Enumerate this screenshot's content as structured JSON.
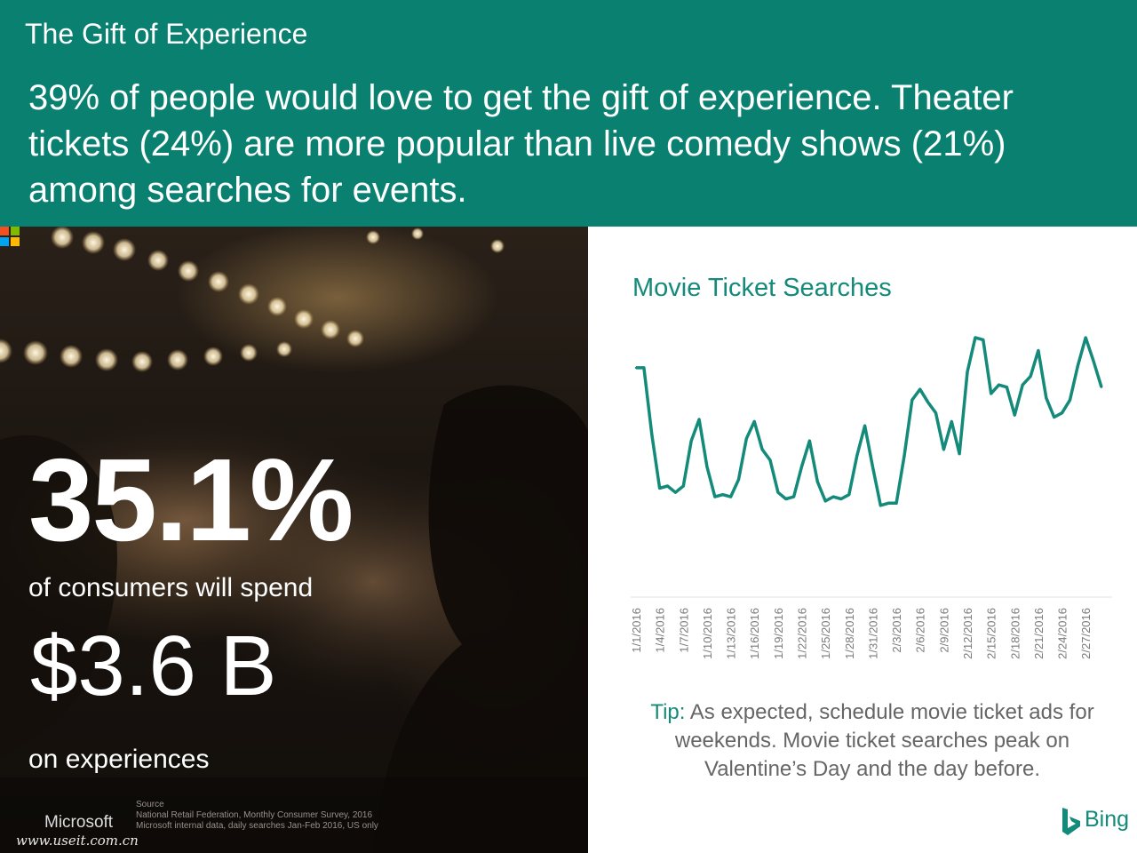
{
  "header": {
    "title": "The Gift of Experience",
    "text": "39% of people would love to get the gift of experience. Theater tickets (24%) are more popular than live comedy shows (21%) among searches for events."
  },
  "stats": {
    "percent": "35.1%",
    "spend_label": "of consumers will spend",
    "amount": "$3.6 B",
    "experiences_label": "on experiences"
  },
  "source": {
    "heading": "Source",
    "line1": "National Retail Federation, Monthly Consumer Survey, 2016",
    "line2": "Microsoft internal data, daily searches Jan-Feb 2016, US only"
  },
  "branding": {
    "microsoft": "Microsoft",
    "watermark": "www.useit.com.cn",
    "bing": "Bing",
    "accent": "#138a7a",
    "header_bg": "#0a8070"
  },
  "tip": {
    "label": "Tip:",
    "text": "As expected, schedule movie ticket ads for weekends.  Movie ticket searches peak on Valentine’s Day and the day before."
  },
  "chart_data": {
    "type": "line",
    "title": "Movie Ticket Searches",
    "xlabel": "",
    "ylabel": "",
    "y_axis_shown": false,
    "grid": false,
    "tick_labels": [
      "1/1/2016",
      "1/4/2016",
      "1/7/2016",
      "1/10/2016",
      "1/13/2016",
      "1/16/2016",
      "1/19/2016",
      "1/22/2016",
      "1/25/2016",
      "1/28/2016",
      "1/31/2016",
      "2/3/2016",
      "2/6/2016",
      "2/9/2016",
      "2/12/2016",
      "2/15/2016",
      "2/18/2016",
      "2/21/2016",
      "2/24/2016",
      "2/27/2016"
    ],
    "ylim": [
      0,
      100
    ],
    "series": [
      {
        "color": "#138a7a",
        "x": [
          "1/1/2016",
          "1/2/2016",
          "1/3/2016",
          "1/4/2016",
          "1/5/2016",
          "1/6/2016",
          "1/7/2016",
          "1/8/2016",
          "1/9/2016",
          "1/10/2016",
          "1/11/2016",
          "1/12/2016",
          "1/13/2016",
          "1/14/2016",
          "1/15/2016",
          "1/16/2016",
          "1/17/2016",
          "1/18/2016",
          "1/19/2016",
          "1/20/2016",
          "1/21/2016",
          "1/22/2016",
          "1/23/2016",
          "1/24/2016",
          "1/25/2016",
          "1/26/2016",
          "1/27/2016",
          "1/28/2016",
          "1/29/2016",
          "1/30/2016",
          "1/31/2016",
          "2/1/2016",
          "2/2/2016",
          "2/3/2016",
          "2/4/2016",
          "2/5/2016",
          "2/6/2016",
          "2/7/2016",
          "2/8/2016",
          "2/9/2016",
          "2/10/2016",
          "2/11/2016",
          "2/12/2016",
          "2/13/2016",
          "2/14/2016",
          "2/15/2016",
          "2/16/2016",
          "2/17/2016",
          "2/18/2016",
          "2/19/2016",
          "2/20/2016",
          "2/21/2016",
          "2/22/2016",
          "2/23/2016",
          "2/24/2016",
          "2/25/2016",
          "2/26/2016",
          "2/27/2016",
          "2/28/2016",
          "2/29/2016"
        ],
        "values": [
          86,
          86,
          55,
          30,
          31,
          28,
          31,
          52,
          62,
          40,
          26,
          27,
          26,
          34,
          53,
          61,
          48,
          43,
          28,
          25,
          26,
          40,
          52,
          33,
          24,
          26,
          25,
          27,
          45,
          59,
          40,
          22,
          23,
          23,
          45,
          71,
          76,
          70,
          65,
          48,
          61,
          46,
          84,
          100,
          99,
          74,
          78,
          77,
          64,
          78,
          82,
          94,
          72,
          63,
          65,
          71,
          87,
          100,
          89,
          77
        ]
      }
    ]
  }
}
